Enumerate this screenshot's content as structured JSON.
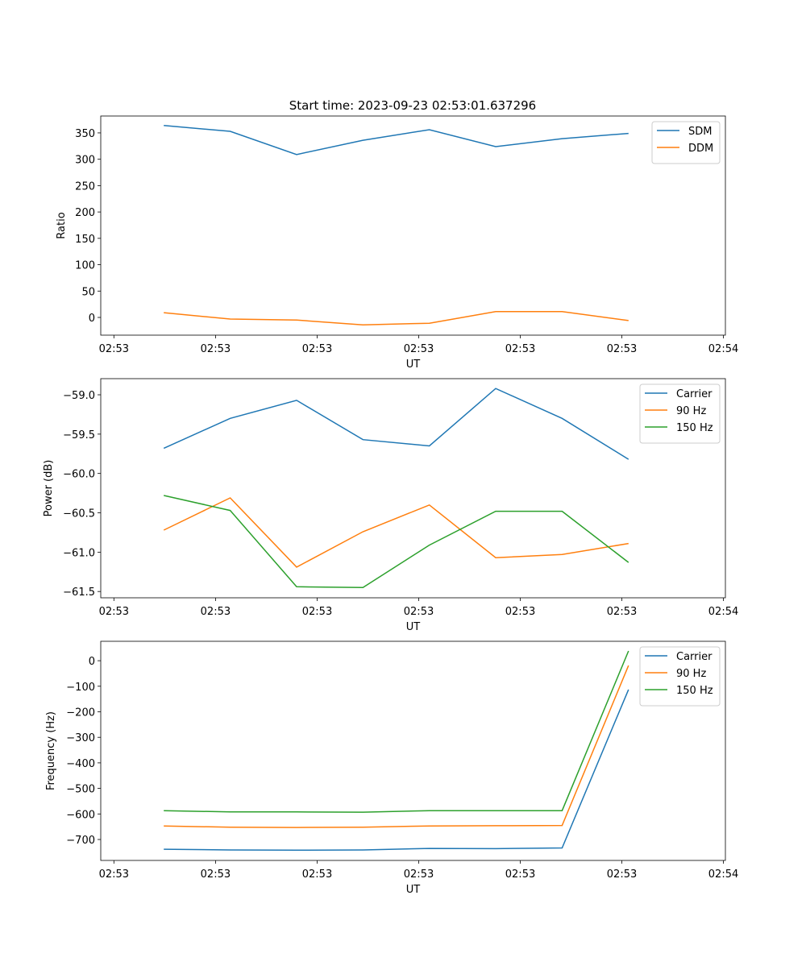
{
  "title": "Start time: 2023-09-23 02:53:01.637296",
  "colors": {
    "blue": "#1f77b4",
    "orange": "#ff7f0e",
    "green": "#2ca02c"
  },
  "chart_data": [
    {
      "type": "line",
      "xlabel": "UT",
      "ylabel": "Ratio",
      "x": [
        0,
        1,
        2,
        3,
        4,
        5,
        6,
        7
      ],
      "xlim": [
        -0.95,
        8.46
      ],
      "xticks": [
        -0.752,
        0.779,
        2.31,
        3.84,
        5.37,
        6.9,
        8.43
      ],
      "xtick_labels": [
        "02:53",
        "02:53",
        "02:53",
        "02:53",
        "02:53",
        "02:53",
        "02:54"
      ],
      "ylim": [
        -33.6,
        382
      ],
      "yticks": [
        0,
        50,
        100,
        150,
        200,
        250,
        300,
        350
      ],
      "ytick_labels": [
        "0",
        "50",
        "100",
        "150",
        "200",
        "250",
        "300",
        "350"
      ],
      "legend": "top-right",
      "series": [
        {
          "name": "SDM",
          "color": "#1f77b4",
          "values": [
            364,
            353,
            309,
            336,
            356,
            324,
            339,
            349
          ]
        },
        {
          "name": "DDM",
          "color": "#ff7f0e",
          "values": [
            9,
            -3,
            -5,
            -14,
            -11,
            11,
            11,
            -6
          ]
        }
      ]
    },
    {
      "type": "line",
      "xlabel": "UT",
      "ylabel": "Power (dB)",
      "x": [
        0,
        1,
        2,
        3,
        4,
        5,
        6,
        7
      ],
      "xlim": [
        -0.95,
        8.46
      ],
      "xticks": [
        -0.752,
        0.779,
        2.31,
        3.84,
        5.37,
        6.9,
        8.43
      ],
      "xtick_labels": [
        "02:53",
        "02:53",
        "02:53",
        "02:53",
        "02:53",
        "02:53",
        "02:54"
      ],
      "ylim": [
        -61.58,
        -58.795
      ],
      "yticks": [
        -61.5,
        -61.0,
        -60.5,
        -60.0,
        -59.5,
        -59.0
      ],
      "ytick_labels": [
        "−61.5",
        "−61.0",
        "−60.5",
        "−60.0",
        "−59.5",
        "−59.0"
      ],
      "legend": "top-right",
      "series": [
        {
          "name": "Carrier",
          "color": "#1f77b4",
          "values": [
            -59.68,
            -59.3,
            -59.07,
            -59.57,
            -59.65,
            -58.92,
            -59.3,
            -59.82
          ]
        },
        {
          "name": "90 Hz",
          "color": "#ff7f0e",
          "values": [
            -60.72,
            -60.31,
            -61.19,
            -60.74,
            -60.4,
            -61.07,
            -61.03,
            -60.89
          ]
        },
        {
          "name": "150 Hz",
          "color": "#2ca02c",
          "values": [
            -60.28,
            -60.47,
            -61.44,
            -61.45,
            -60.91,
            -60.48,
            -60.48,
            -61.13
          ]
        }
      ]
    },
    {
      "type": "line",
      "xlabel": "UT",
      "ylabel": "Frequency (Hz)",
      "x": [
        0,
        1,
        2,
        3,
        4,
        5,
        6,
        7
      ],
      "xlim": [
        -0.95,
        8.46
      ],
      "xticks": [
        -0.752,
        0.779,
        2.31,
        3.84,
        5.37,
        6.9,
        8.43
      ],
      "xtick_labels": [
        "02:53",
        "02:53",
        "02:53",
        "02:53",
        "02:53",
        "02:53",
        "02:54"
      ],
      "ylim": [
        -782,
        76
      ],
      "yticks": [
        -700,
        -600,
        -500,
        -400,
        -300,
        -200,
        -100,
        0
      ],
      "ytick_labels": [
        "−700",
        "−600",
        "−500",
        "−400",
        "−300",
        "−200",
        "−100",
        "0"
      ],
      "legend": "top-right",
      "series": [
        {
          "name": "Carrier",
          "color": "#1f77b4",
          "values": [
            -738,
            -741,
            -742,
            -741,
            -735,
            -736,
            -733,
            -113
          ]
        },
        {
          "name": "90 Hz",
          "color": "#ff7f0e",
          "values": [
            -647,
            -652,
            -653,
            -652,
            -647,
            -646,
            -645,
            -19
          ]
        },
        {
          "name": "150 Hz",
          "color": "#2ca02c",
          "values": [
            -587,
            -592,
            -592,
            -593,
            -587,
            -587,
            -587,
            38
          ]
        }
      ]
    }
  ]
}
